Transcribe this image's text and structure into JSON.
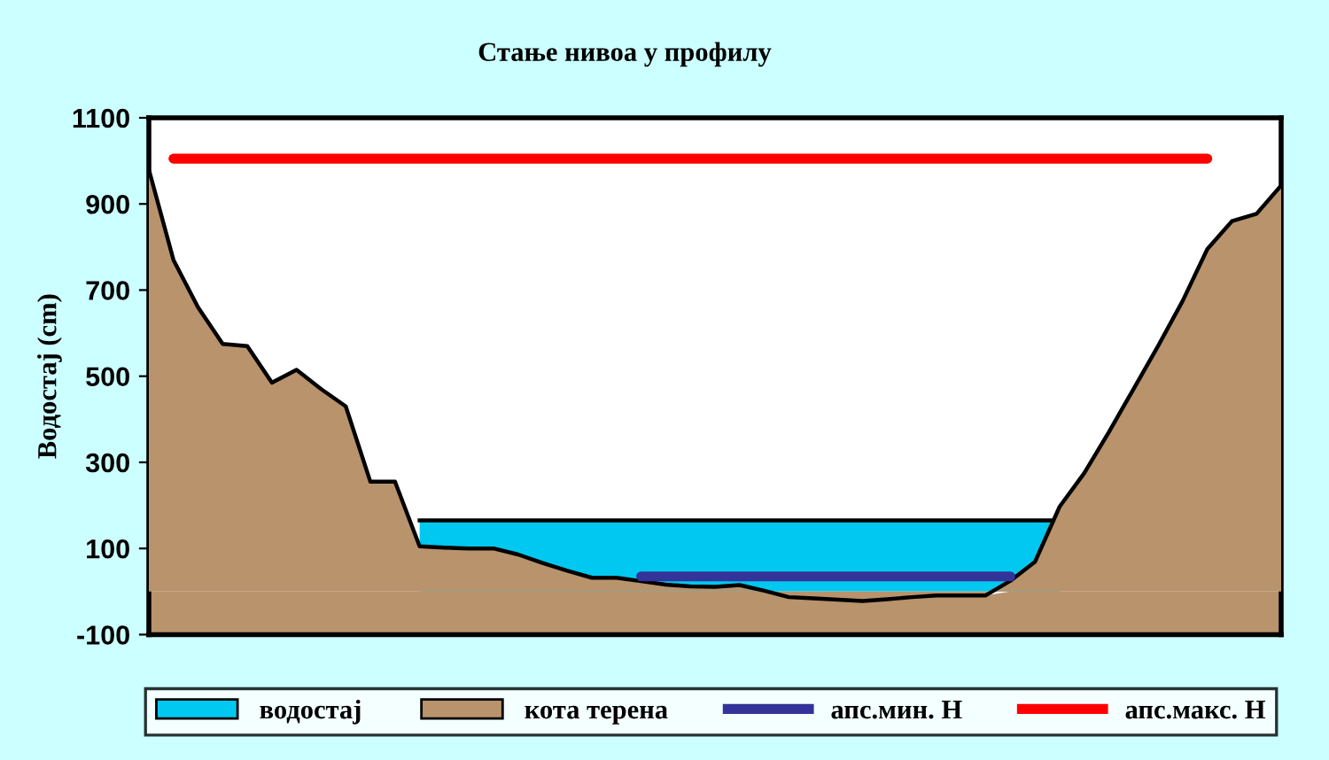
{
  "chart_data": {
    "type": "area",
    "title": "Стање нивоа у профилу",
    "ylabel": "Водостај (cm)",
    "categories": [
      null,
      null,
      null,
      null,
      null,
      null,
      null,
      null,
      null,
      null,
      null,
      null,
      null,
      null,
      null,
      null,
      null,
      null,
      null,
      null,
      null,
      null,
      null,
      null,
      null,
      null,
      null,
      null,
      null,
      null,
      null,
      null,
      null,
      null,
      null,
      null,
      null,
      null,
      null,
      null,
      null,
      null,
      null,
      null,
      null,
      null,
      null
    ],
    "series": [
      {
        "name": "водостај",
        "type": "area",
        "color": "#00c8f0",
        "values": [
          null,
          null,
          null,
          null,
          null,
          null,
          null,
          null,
          null,
          null,
          null,
          165,
          165,
          165,
          165,
          165,
          165,
          165,
          165,
          165,
          165,
          165,
          165,
          165,
          165,
          165,
          165,
          165,
          165,
          165,
          165,
          165,
          165,
          165,
          165,
          165,
          165,
          165,
          null,
          null,
          null,
          null,
          null,
          null,
          null,
          null,
          null
        ]
      },
      {
        "name": "кота терена",
        "type": "area",
        "color": "#b8936c",
        "values": [
          980,
          770,
          660,
          575,
          570,
          485,
          515,
          470,
          430,
          255,
          255,
          105,
          102,
          100,
          100,
          86,
          66,
          48,
          32,
          32,
          24,
          16,
          12,
          11,
          15,
          2,
          -13,
          -16,
          -19,
          -22,
          -18,
          -13,
          -9,
          -9,
          -9,
          25,
          69,
          197,
          275,
          370,
          470,
          570,
          675,
          795,
          860,
          877,
          943
        ]
      },
      {
        "name": "апс.мин. Н",
        "type": "line",
        "color": "#333399",
        "values": [
          null,
          null,
          null,
          null,
          null,
          null,
          null,
          null,
          null,
          null,
          null,
          null,
          null,
          null,
          null,
          null,
          null,
          null,
          null,
          null,
          35,
          35,
          35,
          35,
          35,
          35,
          35,
          35,
          35,
          35,
          35,
          35,
          35,
          35,
          35,
          35,
          null,
          null,
          null,
          null,
          null,
          null,
          null,
          null,
          null,
          null,
          null
        ]
      },
      {
        "name": "апс.макс. Н",
        "type": "line",
        "color": "#ff0000",
        "values": [
          null,
          1005,
          1005,
          1005,
          1005,
          1005,
          1005,
          1005,
          1005,
          1005,
          1005,
          1005,
          1005,
          1005,
          1005,
          1005,
          1005,
          1005,
          1005,
          1005,
          1005,
          1005,
          1005,
          1005,
          1005,
          1005,
          1005,
          1005,
          1005,
          1005,
          1005,
          1005,
          1005,
          1005,
          1005,
          1005,
          1005,
          1005,
          1005,
          1005,
          1005,
          1005,
          1005,
          1005,
          null,
          null,
          null
        ]
      }
    ],
    "ylim": [
      -100,
      1100
    ],
    "yticks": [
      -100,
      100,
      300,
      500,
      700,
      900,
      1100
    ],
    "legend": "bottom",
    "grid": false,
    "tick_labels": "y"
  }
}
